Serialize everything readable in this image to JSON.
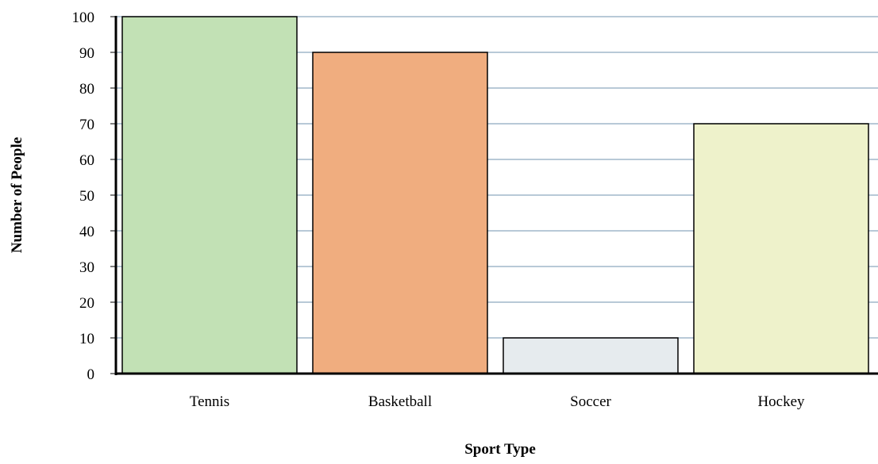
{
  "chart_data": {
    "type": "bar",
    "title": "",
    "xlabel": "Sport Type",
    "ylabel": "Number of People",
    "categories": [
      "Tennis",
      "Basketball",
      "Soccer",
      "Hockey"
    ],
    "values": [
      100,
      90,
      10,
      70
    ],
    "colors": [
      "#c2e1b5",
      "#f0ad7f",
      "#e6ebee",
      "#eef2cb"
    ],
    "ylim": [
      0,
      100
    ],
    "yticks": [
      "0",
      "10",
      "20",
      "30",
      "40",
      "50",
      "60",
      "70",
      "80",
      "90",
      "100"
    ],
    "grid": true,
    "grid_color": "#8ea9bf",
    "legend": "none"
  }
}
